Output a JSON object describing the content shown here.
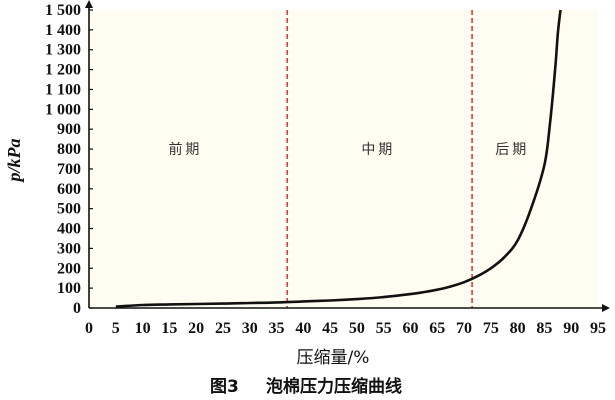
{
  "chart_data": {
    "type": "line",
    "title": "",
    "caption_number": "图3",
    "caption_text": "泡棉压力压缩曲线",
    "xlabel": "压缩量/%",
    "ylabel": "p/kPa",
    "xlim": [
      0,
      95
    ],
    "ylim": [
      0,
      1500
    ],
    "xticks": [
      0,
      5,
      10,
      15,
      20,
      25,
      30,
      35,
      40,
      45,
      50,
      55,
      60,
      65,
      70,
      75,
      80,
      85,
      90,
      95
    ],
    "ytick_labels": [
      "0",
      "100",
      "200",
      "300",
      "400",
      "500",
      "600",
      "700",
      "800",
      "900",
      "1 000",
      "1 100",
      "1 200",
      "1 300",
      "1 400",
      "1 500"
    ],
    "yticks": [
      0,
      100,
      200,
      300,
      400,
      500,
      600,
      700,
      800,
      900,
      1000,
      1100,
      1200,
      1300,
      1400,
      1500
    ],
    "grid": false,
    "background": "#fffdf2",
    "line_color": "#111111",
    "divider_color": "#d93a3a",
    "dividers": [
      37,
      71.5
    ],
    "regions": [
      {
        "label": "前期",
        "x": 18
      },
      {
        "label": "中期",
        "x": 54
      },
      {
        "label": "后期",
        "x": 79
      }
    ],
    "series": [
      {
        "x": [
          5,
          10,
          15,
          20,
          25,
          30,
          35,
          40,
          45,
          50,
          55,
          60,
          62.5,
          65,
          67.5,
          70,
          72.5,
          75,
          77.5,
          80,
          82.5,
          85,
          86,
          87,
          87.5,
          88
        ],
        "y": [
          7,
          15,
          18,
          20,
          22,
          25,
          28,
          33,
          38,
          45,
          55,
          70,
          80,
          92,
          108,
          130,
          160,
          200,
          255,
          340,
          500,
          720,
          920,
          1200,
          1380,
          1500
        ]
      }
    ],
    "label_y_level": 800
  }
}
